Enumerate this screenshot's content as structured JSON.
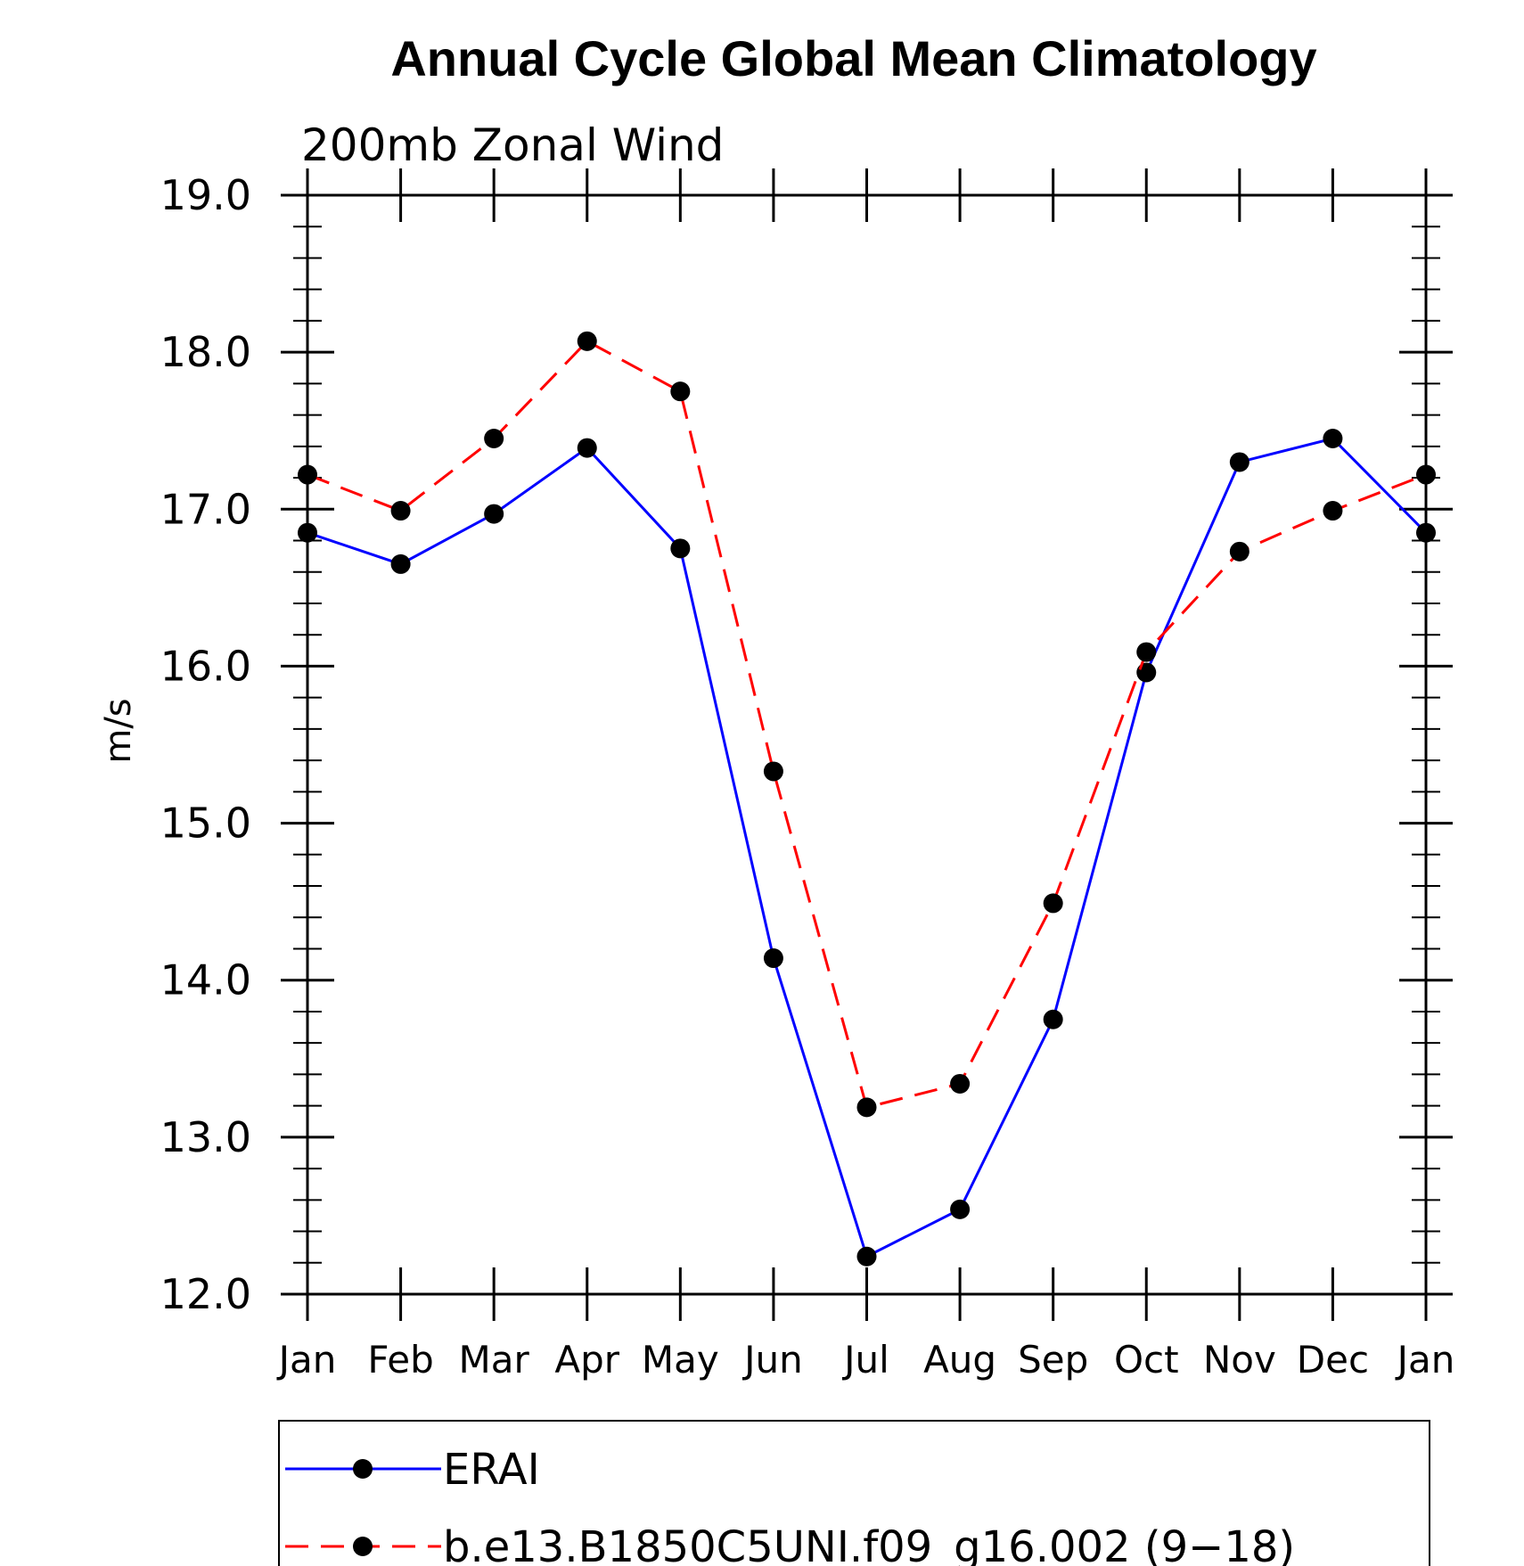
{
  "chart_data": {
    "type": "line",
    "title": "Annual Cycle Global Mean Climatology",
    "subtitle": "200mb Zonal Wind",
    "xlabel": "",
    "ylabel": "m/s",
    "categories": [
      "Jan",
      "Feb",
      "Mar",
      "Apr",
      "May",
      "Jun",
      "Jul",
      "Aug",
      "Sep",
      "Oct",
      "Nov",
      "Dec",
      "Jan"
    ],
    "ylim": [
      12.0,
      19.0
    ],
    "yticks": [
      12.0,
      13.0,
      14.0,
      15.0,
      16.0,
      17.0,
      18.0,
      19.0
    ],
    "ytick_labels": [
      "12.0",
      "13.0",
      "14.0",
      "15.0",
      "16.0",
      "17.0",
      "18.0",
      "19.0"
    ],
    "y_minor_step": 0.2,
    "grid": false,
    "legend_position": "bottom",
    "series": [
      {
        "name": "ERAI",
        "color": "#0000ff",
        "line_style": "solid",
        "marker": "filled-circle",
        "values": [
          16.85,
          16.65,
          16.97,
          17.39,
          16.75,
          14.14,
          12.24,
          12.54,
          13.75,
          15.96,
          17.3,
          17.45,
          16.85
        ]
      },
      {
        "name": "b.e13.B1850C5UNI.f09_g16.002 (9−18)",
        "color": "#ff0000",
        "line_style": "dashed",
        "marker": "filled-circle",
        "values": [
          17.22,
          16.99,
          17.45,
          18.07,
          17.75,
          15.33,
          13.19,
          13.34,
          14.49,
          16.09,
          16.73,
          16.99,
          17.22
        ]
      }
    ]
  }
}
